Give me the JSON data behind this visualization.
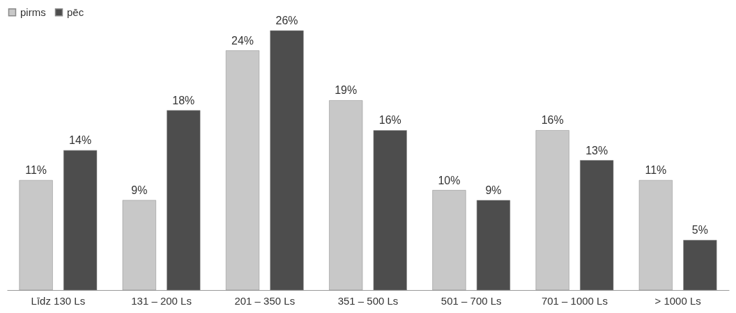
{
  "chart_data": {
    "type": "bar",
    "categories": [
      "Līdz 130 Ls",
      "131 – 200 Ls",
      "201 – 350 Ls",
      "351 – 500 Ls",
      "501 – 700 Ls",
      "701 – 1000 Ls",
      "> 1000 Ls"
    ],
    "series": [
      {
        "name": "pirms",
        "color": "#c8c8c8",
        "values": [
          11,
          9,
          24,
          19,
          10,
          16,
          11
        ],
        "value_labels": [
          "11%",
          "9%",
          "24%",
          "19%",
          "10%",
          "16%",
          "11%"
        ]
      },
      {
        "name": "pēc",
        "color": "#4d4d4d",
        "values": [
          14,
          18,
          26,
          16,
          9,
          13,
          5
        ],
        "value_labels": [
          "14%",
          "18%",
          "26%",
          "16%",
          "9%",
          "13%",
          "5%"
        ]
      }
    ],
    "legend": "top",
    "grid": false
  }
}
